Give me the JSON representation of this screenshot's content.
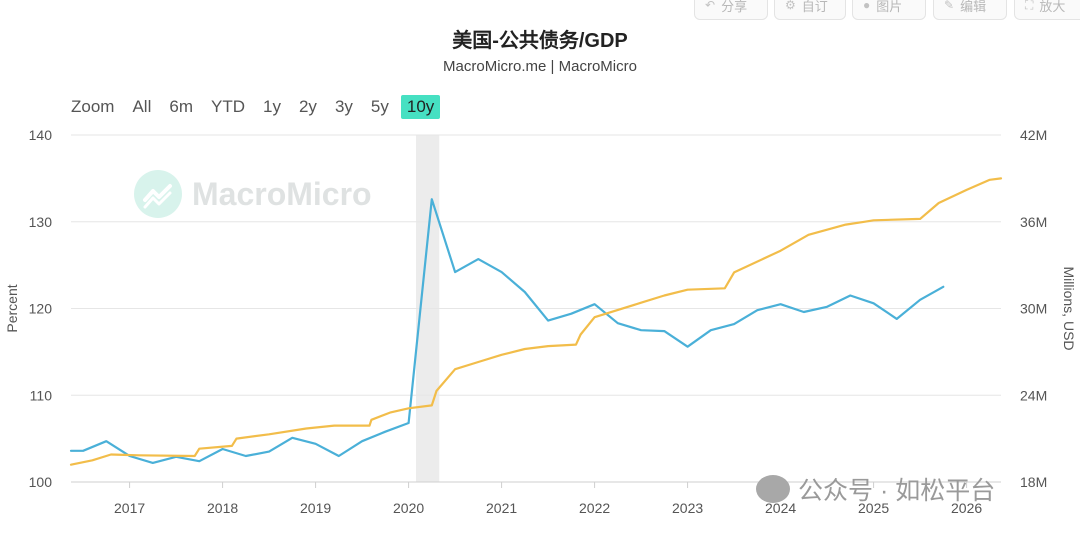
{
  "toolbar": {
    "share": {
      "icon": "share-icon",
      "label": "分享"
    },
    "favorite": {
      "icon": "gear-icon",
      "label": "自订"
    },
    "image": {
      "icon": "user-icon",
      "label": "图片"
    },
    "edit": {
      "icon": "pencil-icon",
      "label": "编辑"
    },
    "fullscreen": {
      "icon": "expand-icon",
      "label": "放大"
    }
  },
  "header": {
    "title": "美国-公共债务/GDP",
    "subtitle": "MacroMicro.me | MacroMicro"
  },
  "zoom": {
    "label": "Zoom",
    "options": [
      "All",
      "6m",
      "YTD",
      "1y",
      "2y",
      "3y",
      "5y",
      "10y"
    ],
    "selected": "10y"
  },
  "watermark": {
    "text": "MacroMicro",
    "icon": "macromicro-logo-icon"
  },
  "source_watermark": {
    "icon": "wechat-icon",
    "text": "公众号 · 如松平台"
  },
  "colors": {
    "blue": "#4ab0d8",
    "gold": "#f2bd4a",
    "recession": "#ececec",
    "zoom_active": "#46e0c2"
  },
  "chart_data": {
    "type": "line",
    "title": "美国-公共债务/GDP",
    "subtitle": "MacroMicro.me | MacroMicro",
    "x_range": [
      2016.37,
      2026.37
    ],
    "x_ticks": [
      "2017",
      "2018",
      "2019",
      "2020",
      "2021",
      "2022",
      "2023",
      "2024",
      "2025",
      "2026"
    ],
    "y_left": {
      "label": "Percent",
      "range": [
        100,
        140
      ],
      "ticks": [
        "100",
        "110",
        "120",
        "130",
        "140"
      ]
    },
    "y_right": {
      "label": "Millions, USD",
      "range": [
        18,
        42
      ],
      "unit_suffix": "M",
      "ticks": [
        "18M",
        "24M",
        "30M",
        "36M",
        "42M"
      ]
    },
    "grid": true,
    "recession_band": [
      2020.08,
      2020.33
    ],
    "series": [
      {
        "axis": "left",
        "color": "#4ab0d8",
        "points": [
          [
            2016.37,
            103.6
          ],
          [
            2016.5,
            103.6
          ],
          [
            2016.75,
            104.7
          ],
          [
            2017.0,
            103.0
          ],
          [
            2017.25,
            102.2
          ],
          [
            2017.5,
            102.9
          ],
          [
            2017.75,
            102.4
          ],
          [
            2018.0,
            103.8
          ],
          [
            2018.25,
            103.0
          ],
          [
            2018.5,
            103.5
          ],
          [
            2018.75,
            105.1
          ],
          [
            2019.0,
            104.4
          ],
          [
            2019.25,
            103.0
          ],
          [
            2019.5,
            104.7
          ],
          [
            2019.75,
            105.8
          ],
          [
            2020.0,
            106.8
          ],
          [
            2020.25,
            132.6
          ],
          [
            2020.5,
            124.2
          ],
          [
            2020.75,
            125.7
          ],
          [
            2021.0,
            124.2
          ],
          [
            2021.25,
            121.9
          ],
          [
            2021.5,
            118.6
          ],
          [
            2021.75,
            119.4
          ],
          [
            2022.0,
            120.5
          ],
          [
            2022.25,
            118.3
          ],
          [
            2022.5,
            117.5
          ],
          [
            2022.75,
            117.4
          ],
          [
            2023.0,
            115.6
          ],
          [
            2023.25,
            117.5
          ],
          [
            2023.5,
            118.2
          ],
          [
            2023.75,
            119.8
          ],
          [
            2024.0,
            120.5
          ],
          [
            2024.25,
            119.6
          ],
          [
            2024.5,
            120.2
          ],
          [
            2024.75,
            121.5
          ],
          [
            2025.0,
            120.6
          ],
          [
            2025.25,
            118.8
          ],
          [
            2025.5,
            121.0
          ],
          [
            2025.75,
            122.5
          ]
        ]
      },
      {
        "axis": "right",
        "color": "#f2bd4a",
        "points": [
          [
            2016.37,
            19.2
          ],
          [
            2016.6,
            19.5
          ],
          [
            2016.8,
            19.9
          ],
          [
            2017.1,
            19.85
          ],
          [
            2017.7,
            19.8
          ],
          [
            2017.75,
            20.3
          ],
          [
            2018.1,
            20.5
          ],
          [
            2018.15,
            21.0
          ],
          [
            2018.5,
            21.3
          ],
          [
            2018.9,
            21.7
          ],
          [
            2019.2,
            21.9
          ],
          [
            2019.58,
            21.9
          ],
          [
            2019.6,
            22.3
          ],
          [
            2019.8,
            22.8
          ],
          [
            2020.0,
            23.1
          ],
          [
            2020.25,
            23.3
          ],
          [
            2020.3,
            24.3
          ],
          [
            2020.5,
            25.8
          ],
          [
            2020.75,
            26.3
          ],
          [
            2021.0,
            26.8
          ],
          [
            2021.25,
            27.2
          ],
          [
            2021.5,
            27.4
          ],
          [
            2021.8,
            27.5
          ],
          [
            2021.85,
            28.2
          ],
          [
            2022.0,
            29.4
          ],
          [
            2022.5,
            30.4
          ],
          [
            2022.75,
            30.9
          ],
          [
            2023.0,
            31.3
          ],
          [
            2023.4,
            31.4
          ],
          [
            2023.5,
            32.5
          ],
          [
            2024.0,
            34.0
          ],
          [
            2024.3,
            35.1
          ],
          [
            2024.7,
            35.8
          ],
          [
            2024.9,
            36.0
          ],
          [
            2025.0,
            36.1
          ],
          [
            2025.5,
            36.2
          ],
          [
            2025.7,
            37.3
          ],
          [
            2026.0,
            38.2
          ],
          [
            2026.25,
            38.9
          ],
          [
            2026.37,
            39.0
          ]
        ]
      }
    ]
  }
}
